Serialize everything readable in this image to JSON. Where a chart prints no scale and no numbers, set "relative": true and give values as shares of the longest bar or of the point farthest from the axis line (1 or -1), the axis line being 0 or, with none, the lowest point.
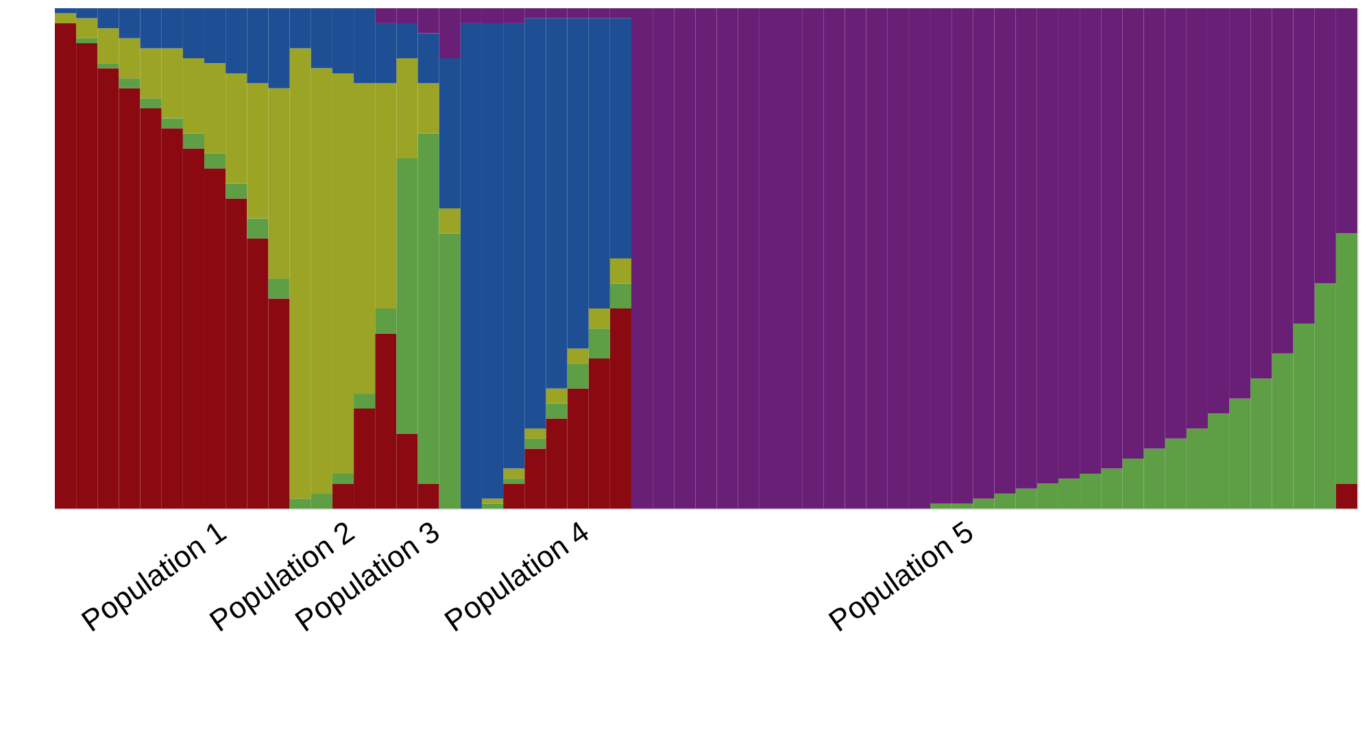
{
  "chart_data": {
    "type": "bar",
    "stacked": true,
    "relative": true,
    "legend": false,
    "grid": false,
    "categories": [
      null,
      null,
      null,
      null,
      null,
      null,
      null,
      "Population 1",
      null,
      null,
      null,
      null,
      null,
      "Population 2",
      null,
      null,
      null,
      "Population 3",
      null,
      null,
      null,
      null,
      null,
      null,
      "Population 4",
      null,
      null,
      null,
      null,
      null,
      null,
      null,
      null,
      null,
      null,
      null,
      null,
      null,
      null,
      null,
      null,
      null,
      "Population 5",
      null,
      null,
      null,
      null,
      null,
      null,
      null,
      null,
      null,
      null,
      null,
      null,
      null,
      null,
      null,
      null,
      null,
      null
    ],
    "series": [
      {
        "color": "#8b0a12",
        "values": [
          0.97,
          0.93,
          0.88,
          0.84,
          0.8,
          0.76,
          0.72,
          0.68,
          0.62,
          0.54,
          0.42,
          0,
          0,
          0.05,
          0.2,
          0.35,
          0.15,
          0.05,
          0,
          0,
          0,
          0.05,
          0.12,
          0.18,
          0.24,
          0.3,
          0.4,
          0,
          0,
          0,
          0,
          0,
          0,
          0,
          0,
          0,
          0,
          0,
          0,
          0,
          0,
          0,
          0,
          0,
          0,
          0,
          0,
          0,
          0,
          0,
          0,
          0,
          0,
          0,
          0,
          0,
          0,
          0,
          0,
          0,
          0.05
        ]
      },
      {
        "color": "#5e9e44",
        "values": [
          0,
          0.01,
          0.01,
          0.02,
          0.02,
          0.02,
          0.03,
          0.03,
          0.03,
          0.04,
          0.04,
          0.02,
          0.03,
          0.02,
          0.03,
          0.05,
          0.55,
          0.7,
          0.55,
          0,
          0.01,
          0.01,
          0.02,
          0.03,
          0.05,
          0.06,
          0.05,
          0,
          0,
          0,
          0,
          0,
          0,
          0,
          0,
          0,
          0,
          0,
          0,
          0,
          0,
          0.01,
          0.01,
          0.02,
          0.03,
          0.04,
          0.05,
          0.06,
          0.07,
          0.08,
          0.1,
          0.12,
          0.14,
          0.16,
          0.19,
          0.22,
          0.26,
          0.31,
          0.37,
          0.45,
          0.5
        ]
      },
      {
        "color": "#9ba424",
        "values": [
          0.02,
          0.04,
          0.07,
          0.08,
          0.1,
          0.14,
          0.15,
          0.18,
          0.22,
          0.27,
          0.38,
          0.9,
          0.85,
          0.8,
          0.62,
          0.45,
          0.2,
          0.1,
          0.05,
          0,
          0.01,
          0.02,
          0.02,
          0.03,
          0.03,
          0.04,
          0.05,
          0,
          0,
          0,
          0,
          0,
          0,
          0,
          0,
          0,
          0,
          0,
          0,
          0,
          0,
          0,
          0,
          0,
          0,
          0,
          0,
          0,
          0,
          0,
          0,
          0,
          0,
          0,
          0,
          0,
          0,
          0,
          0,
          0,
          0
        ]
      },
      {
        "color": "#1e4e94",
        "values": [
          0.01,
          0.02,
          0.04,
          0.06,
          0.08,
          0.08,
          0.1,
          0.11,
          0.13,
          0.15,
          0.16,
          0.08,
          0.12,
          0.13,
          0.15,
          0.12,
          0.07,
          0.1,
          0.3,
          0.97,
          0.95,
          0.89,
          0.82,
          0.74,
          0.66,
          0.58,
          0.48,
          0,
          0,
          0,
          0,
          0,
          0,
          0,
          0,
          0,
          0,
          0,
          0,
          0,
          0,
          0,
          0,
          0,
          0,
          0,
          0,
          0,
          0,
          0,
          0,
          0,
          0,
          0,
          0,
          0,
          0,
          0,
          0,
          0,
          0
        ]
      },
      {
        "color": "#6a1f76",
        "values": [
          0,
          0,
          0,
          0,
          0,
          0,
          0,
          0,
          0,
          0,
          0,
          0,
          0,
          0,
          0,
          0.03,
          0.03,
          0.05,
          0.1,
          0.03,
          0.03,
          0.03,
          0.02,
          0.02,
          0.02,
          0.02,
          0.02,
          1,
          1,
          1,
          1,
          1,
          1,
          1,
          1,
          1,
          1,
          1,
          1,
          1,
          1,
          0.99,
          0.99,
          0.98,
          0.97,
          0.96,
          0.95,
          0.94,
          0.93,
          0.92,
          0.9,
          0.88,
          0.86,
          0.84,
          0.81,
          0.78,
          0.74,
          0.69,
          0.63,
          0.55,
          0.45
        ]
      }
    ]
  }
}
